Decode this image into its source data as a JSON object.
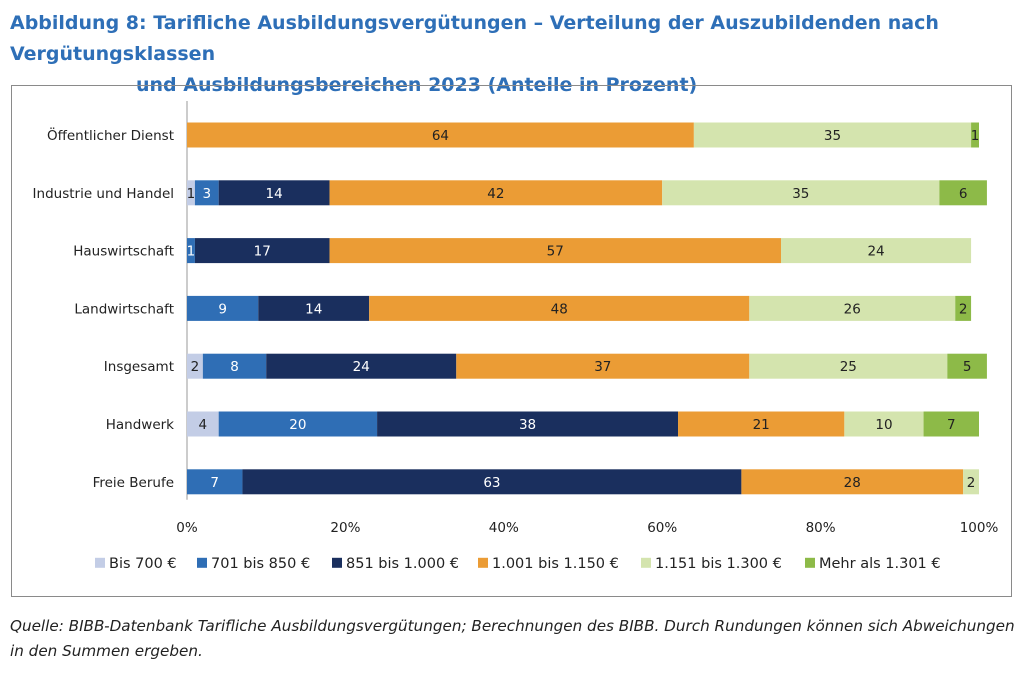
{
  "figure": {
    "title_line1": "Abbildung 8: Tarifliche Ausbildungsvergütungen – Verteilung der Auszubildenden nach Vergütungsklassen",
    "title_line2": "und Ausbildungsbereichen 2023 (Anteile in Prozent)",
    "source_note": "Quelle: BIBB-Datenbank Tarifliche Ausbildungsvergütungen; Berechnungen des BIBB. Durch Rundungen können sich Abweichungen in den Summen ergeben."
  },
  "chart_data": {
    "type": "bar",
    "orientation": "horizontal",
    "stacked": true,
    "categories": [
      "Öffentlicher Dienst",
      "Industrie und Handel",
      "Hauswirtschaft",
      "Landwirtschaft",
      "Insgesamt",
      "Handwerk",
      "Freie Berufe"
    ],
    "series": [
      {
        "name": "Bis 700 €",
        "color": "#c3cde6",
        "values": [
          0,
          1,
          0,
          0,
          2,
          4,
          0
        ]
      },
      {
        "name": "701 bis 850 €",
        "color": "#2f6eb5",
        "values": [
          0,
          3,
          1,
          9,
          8,
          20,
          7
        ]
      },
      {
        "name": "851 bis 1.000 €",
        "color": "#1a2f5e",
        "values": [
          0,
          14,
          17,
          14,
          24,
          38,
          63
        ]
      },
      {
        "name": "1.001 bis 1.150 €",
        "color": "#eb9c35",
        "values": [
          64,
          42,
          57,
          48,
          37,
          21,
          28
        ]
      },
      {
        "name": "1.151 bis 1.300 €",
        "color": "#d4e4ae",
        "values": [
          35,
          35,
          24,
          26,
          25,
          10,
          2
        ]
      },
      {
        "name": "Mehr als 1.301 €",
        "color": "#8dba48",
        "values": [
          1,
          6,
          0,
          2,
          5,
          7,
          0
        ]
      }
    ],
    "xlim": [
      0,
      100
    ],
    "x_ticks": [
      "0%",
      "20%",
      "40%",
      "60%",
      "80%",
      "100%"
    ],
    "legend_position": "bottom",
    "grid": false
  }
}
